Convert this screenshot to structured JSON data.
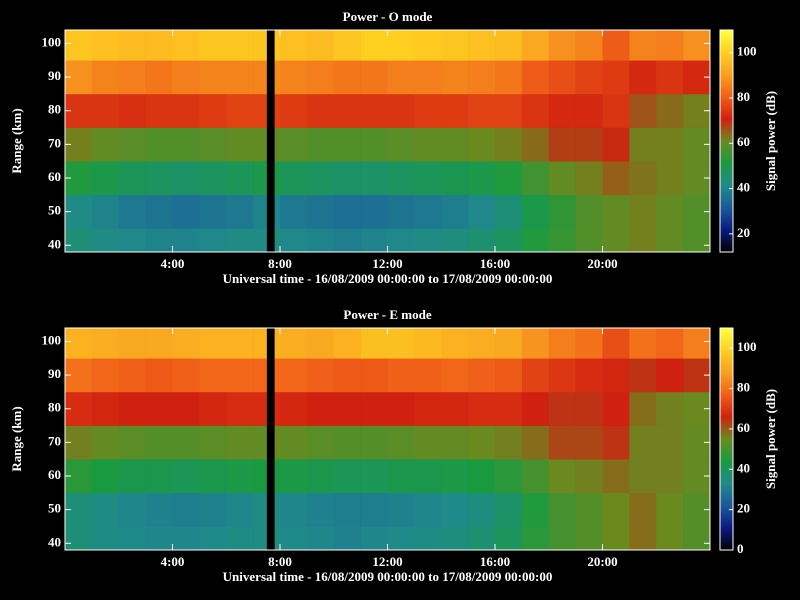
{
  "chart_data": [
    {
      "type": "heatmap",
      "title": "Power - O mode",
      "xlabel": "Universal time - 16/08/2009 00:00:00 to 17/08/2009 00:00:00",
      "ylabel": "Range (km)",
      "x_bins": [
        0,
        1,
        2,
        3,
        4,
        5,
        6,
        7,
        7.5,
        7.8,
        8,
        9,
        10,
        11,
        12,
        13,
        14,
        15,
        16,
        17,
        18,
        19,
        20,
        21,
        22,
        23,
        24
      ],
      "y_bins": [
        38,
        45,
        55,
        65,
        75,
        85,
        95,
        104
      ],
      "z": [
        [
          44,
          42,
          41,
          40,
          40,
          41,
          42,
          42,
          null,
          43,
          41,
          40,
          39,
          40,
          41,
          42,
          43,
          45,
          47,
          52,
          55,
          58,
          60,
          62,
          60,
          58
        ],
        [
          42,
          40,
          38,
          37,
          36,
          37,
          38,
          40,
          null,
          41,
          38,
          37,
          36,
          36,
          37,
          38,
          39,
          41,
          44,
          50,
          54,
          58,
          60,
          62,
          60,
          58
        ],
        [
          52,
          50,
          48,
          47,
          46,
          47,
          48,
          50,
          null,
          50,
          48,
          47,
          46,
          46,
          47,
          48,
          49,
          50,
          52,
          56,
          60,
          62,
          65,
          63,
          62,
          60
        ],
        [
          62,
          60,
          59,
          58,
          58,
          59,
          60,
          60,
          null,
          60,
          59,
          58,
          58,
          58,
          59,
          60,
          60,
          61,
          62,
          64,
          68,
          68,
          70,
          62,
          62,
          60
        ],
        [
          74,
          74,
          73,
          74,
          74,
          75,
          76,
          76,
          null,
          76,
          75,
          74,
          74,
          74,
          74,
          75,
          75,
          76,
          76,
          74,
          72,
          72,
          74,
          66,
          64,
          62
        ],
        [
          88,
          86,
          85,
          84,
          85,
          86,
          86,
          86,
          null,
          87,
          86,
          85,
          84,
          84,
          85,
          85,
          86,
          85,
          84,
          80,
          78,
          76,
          75,
          72,
          74,
          72
        ],
        [
          98,
          97,
          96,
          96,
          97,
          98,
          98,
          98,
          null,
          98,
          97,
          96,
          98,
          100,
          100,
          99,
          98,
          97,
          96,
          92,
          88,
          86,
          80,
          86,
          85,
          88
        ]
      ],
      "xlim": [
        0,
        24
      ],
      "xticks": [
        {
          "value": 4,
          "label": "4:00"
        },
        {
          "value": 8,
          "label": "8:00"
        },
        {
          "value": 12,
          "label": "12:00"
        },
        {
          "value": 16,
          "label": "16:00"
        },
        {
          "value": 20,
          "label": "20:00"
        }
      ],
      "ylim": [
        38,
        104
      ],
      "yticks": [
        40,
        50,
        60,
        70,
        80,
        90,
        100
      ],
      "colorbar": {
        "label": "Signal power (dB)",
        "lim": [
          12,
          110
        ],
        "ticks": [
          20,
          40,
          60,
          80,
          100
        ]
      },
      "colormap": [
        "#000000",
        "#0a1a80",
        "#1a5a9a",
        "#208a8a",
        "#1a9a40",
        "#6a8a20",
        "#d02010",
        "#f06018",
        "#f8a020",
        "#ffd020",
        "#ffff40"
      ]
    },
    {
      "type": "heatmap",
      "title": "Power - E mode",
      "xlabel": "Universal time - 16/08/2009 00:00:00 to 17/08/2009 00:00:00",
      "ylabel": "Range (km)",
      "x_bins": [
        0,
        1,
        2,
        3,
        4,
        5,
        6,
        7,
        7.5,
        7.8,
        8,
        9,
        10,
        11,
        12,
        13,
        14,
        15,
        16,
        17,
        18,
        19,
        20,
        21,
        22,
        23,
        24
      ],
      "y_bins": [
        38,
        45,
        55,
        65,
        75,
        85,
        95,
        104
      ],
      "z": [
        [
          36,
          34,
          33,
          32,
          32,
          33,
          34,
          34,
          null,
          35,
          33,
          32,
          31,
          32,
          33,
          34,
          35,
          37,
          40,
          46,
          50,
          52,
          55,
          58,
          55,
          52
        ],
        [
          36,
          34,
          32,
          31,
          30,
          31,
          32,
          34,
          null,
          34,
          32,
          31,
          30,
          30,
          31,
          32,
          33,
          35,
          38,
          45,
          50,
          52,
          55,
          58,
          55,
          52
        ],
        [
          46,
          44,
          42,
          42,
          41,
          42,
          43,
          44,
          null,
          44,
          43,
          42,
          41,
          41,
          42,
          42,
          43,
          44,
          46,
          50,
          55,
          56,
          58,
          56,
          56,
          54
        ],
        [
          56,
          54,
          53,
          52,
          52,
          53,
          54,
          54,
          null,
          55,
          54,
          53,
          52,
          52,
          53,
          54,
          54,
          55,
          56,
          58,
          62,
          62,
          64,
          56,
          56,
          54
        ],
        [
          68,
          67,
          66,
          66,
          66,
          67,
          68,
          68,
          null,
          68,
          67,
          66,
          66,
          66,
          66,
          67,
          67,
          68,
          68,
          66,
          64,
          64,
          66,
          58,
          56,
          55
        ],
        [
          80,
          78,
          77,
          76,
          77,
          78,
          78,
          78,
          null,
          79,
          78,
          77,
          76,
          76,
          77,
          77,
          78,
          77,
          76,
          72,
          70,
          68,
          67,
          64,
          66,
          64
        ],
        [
          92,
          91,
          90,
          90,
          91,
          92,
          92,
          92,
          null,
          92,
          91,
          90,
          92,
          95,
          95,
          94,
          92,
          91,
          90,
          86,
          82,
          80,
          74,
          80,
          78,
          82
        ]
      ],
      "xlim": [
        0,
        24
      ],
      "xticks": [
        {
          "value": 4,
          "label": "4:00"
        },
        {
          "value": 8,
          "label": "8:00"
        },
        {
          "value": 12,
          "label": "12:00"
        },
        {
          "value": 16,
          "label": "16:00"
        },
        {
          "value": 20,
          "label": "20:00"
        }
      ],
      "ylim": [
        38,
        104
      ],
      "yticks": [
        40,
        50,
        60,
        70,
        80,
        90,
        100
      ],
      "colorbar": {
        "label": "Signal power (dB)",
        "lim": [
          0,
          110
        ],
        "ticks": [
          0,
          20,
          40,
          60,
          80,
          100
        ]
      },
      "colormap": [
        "#000000",
        "#0a1a80",
        "#1a5a9a",
        "#208a8a",
        "#1a9a40",
        "#6a8a20",
        "#d02010",
        "#f06018",
        "#f8a020",
        "#ffd020",
        "#ffff40"
      ]
    }
  ]
}
